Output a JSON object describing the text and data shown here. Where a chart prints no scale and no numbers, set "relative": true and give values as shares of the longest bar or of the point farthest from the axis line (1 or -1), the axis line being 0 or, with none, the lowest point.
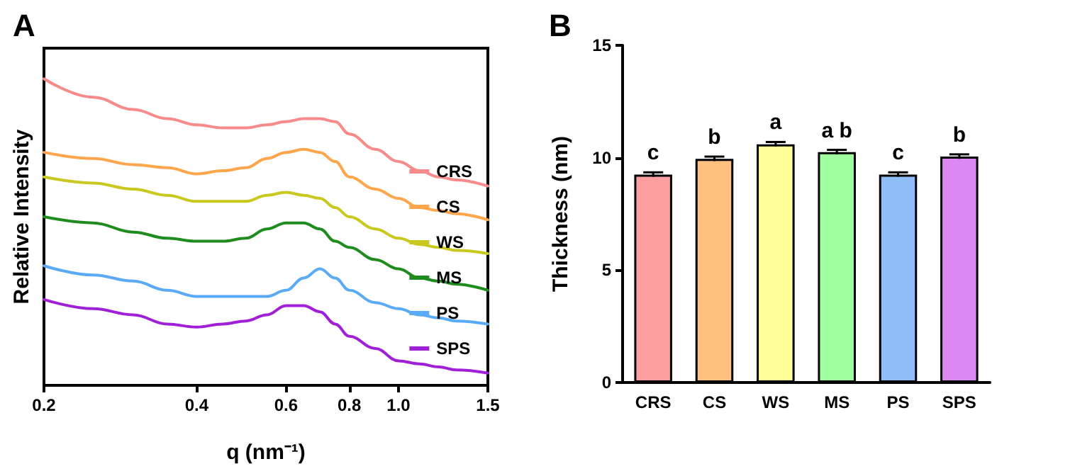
{
  "chart_data": [
    {
      "type": "line",
      "title": "A",
      "xlabel": "q (nm⁻¹)",
      "ylabel": "Relative Intensity",
      "relative": true,
      "log": "x",
      "legend": "right",
      "grid": false,
      "marker": "none",
      "line_style": "solid",
      "x": [
        0.2,
        0.25,
        0.3,
        0.35,
        0.4,
        0.45,
        0.5,
        0.55,
        0.6,
        0.65,
        0.7,
        0.75,
        0.8,
        0.9,
        1.0,
        1.1,
        1.2,
        1.3,
        1.5
      ],
      "xlim": [
        0.2,
        1.5
      ],
      "xticks": [
        0.2,
        0.4,
        0.6,
        0.8,
        {
          "value": 1,
          "label": "1.0"
        },
        1.5
      ],
      "series": [
        {
          "name": "CRS",
          "color": "#f88a8a",
          "values": [
            1.0,
            0.94,
            0.9,
            0.87,
            0.85,
            0.84,
            0.84,
            0.85,
            0.86,
            0.87,
            0.87,
            0.86,
            0.82,
            0.77,
            0.73,
            0.7,
            0.68,
            0.67,
            0.65
          ]
        },
        {
          "name": "CS",
          "color": "#ffa64d",
          "values": [
            0.76,
            0.74,
            0.72,
            0.71,
            0.69,
            0.7,
            0.71,
            0.74,
            0.76,
            0.77,
            0.76,
            0.73,
            0.68,
            0.64,
            0.61,
            0.58,
            0.57,
            0.56,
            0.54
          ]
        },
        {
          "name": "WS",
          "color": "#c8c81e",
          "values": [
            0.68,
            0.66,
            0.64,
            0.62,
            0.6,
            0.6,
            0.6,
            0.62,
            0.63,
            0.62,
            0.61,
            0.58,
            0.55,
            0.51,
            0.48,
            0.46,
            0.45,
            0.44,
            0.43
          ]
        },
        {
          "name": "MS",
          "color": "#1e8c1e",
          "values": [
            0.55,
            0.53,
            0.5,
            0.48,
            0.47,
            0.47,
            0.48,
            0.51,
            0.53,
            0.53,
            0.51,
            0.47,
            0.45,
            0.41,
            0.38,
            0.35,
            0.34,
            0.33,
            0.31
          ]
        },
        {
          "name": "PS",
          "color": "#5aaaf5",
          "values": [
            0.39,
            0.36,
            0.34,
            0.31,
            0.29,
            0.29,
            0.29,
            0.29,
            0.31,
            0.35,
            0.38,
            0.35,
            0.31,
            0.27,
            0.25,
            0.23,
            0.22,
            0.21,
            0.2
          ]
        },
        {
          "name": "SPS",
          "color": "#a020d8",
          "values": [
            0.28,
            0.25,
            0.23,
            0.2,
            0.19,
            0.2,
            0.21,
            0.23,
            0.26,
            0.26,
            0.24,
            0.2,
            0.16,
            0.12,
            0.08,
            0.07,
            0.06,
            0.05,
            0.04
          ]
        }
      ]
    },
    {
      "type": "bar",
      "title": "B",
      "ylabel": "Thickness (nm)",
      "legend": false,
      "grid": false,
      "categories": [
        "CRS",
        "CS",
        "WS",
        "MS",
        "PS",
        "SPS"
      ],
      "values": [
        9.25,
        9.95,
        10.6,
        10.25,
        9.25,
        10.05
      ],
      "errors": [
        0.1,
        0.1,
        0.1,
        0.1,
        0.1,
        0.1
      ],
      "colors": [
        "#ff9e9e",
        "#ffc080",
        "#ffff99",
        "#a0ff9e",
        "#8fbdf8",
        "#dd88f5"
      ],
      "ylim": [
        0,
        15
      ],
      "yticks": [
        0,
        5,
        10,
        15
      ],
      "annotations": [
        "c",
        "b",
        "a",
        "a b",
        "c",
        "b"
      ]
    }
  ]
}
